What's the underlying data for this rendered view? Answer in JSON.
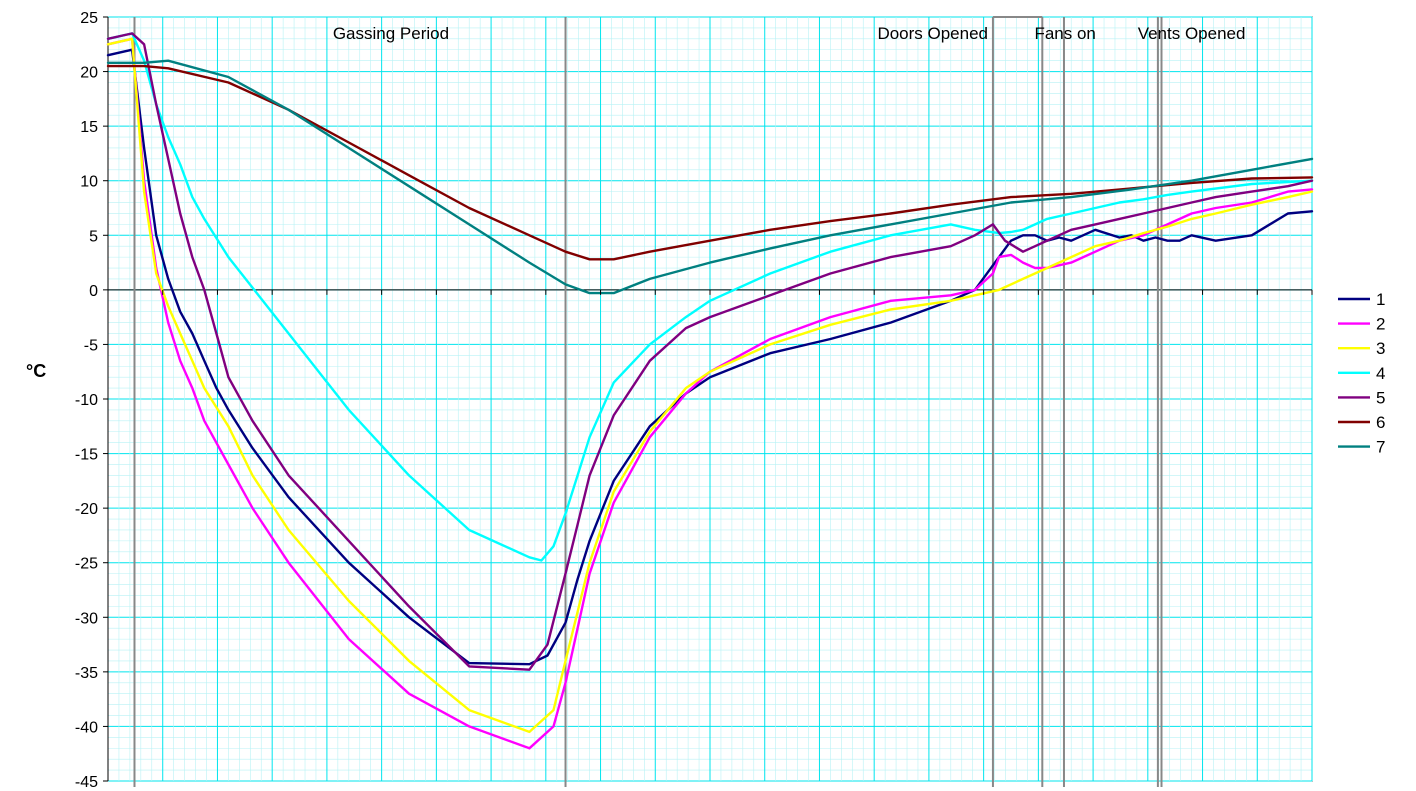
{
  "chart_data": {
    "type": "line",
    "ylabel": "°C",
    "ylim": [
      -45,
      25
    ],
    "y_ticks": [
      "25",
      "20",
      "15",
      "10",
      "5",
      "0",
      "-5",
      "-10",
      "-15",
      "-20",
      "-25",
      "-30",
      "-35",
      "-40",
      "-45"
    ],
    "xlim": [
      0,
      100
    ],
    "grid": true,
    "legend_position": "right",
    "annotations": [
      {
        "text": "Gassing Period",
        "x": 23.5
      },
      {
        "text": "Doors Opened",
        "x": 68.5
      },
      {
        "text": "Fans on",
        "x": 79.5
      },
      {
        "text": "Vents Opened",
        "x": 90.0
      }
    ],
    "markers": [
      2.2,
      38.0,
      73.5,
      77.6,
      79.4,
      87.2,
      87.5
    ],
    "series": [
      {
        "name": "1",
        "color": "#000080",
        "x": [
          0,
          2,
          3,
          4,
          5,
          6,
          7,
          8,
          9,
          10,
          12,
          15,
          20,
          25,
          30,
          35,
          36.5,
          38,
          39,
          40,
          42,
          45,
          48,
          50,
          55,
          60,
          65,
          70,
          72,
          74,
          75,
          76,
          77,
          78,
          79,
          80,
          82,
          84,
          85,
          86,
          87,
          88,
          89,
          90,
          92,
          95,
          98,
          100
        ],
        "y": [
          21.5,
          22,
          13,
          5,
          1,
          -2,
          -4,
          -6.5,
          -9,
          -11,
          -14.5,
          -19,
          -25,
          -30,
          -34.2,
          -34.3,
          -33.5,
          -30.5,
          -26.5,
          -23,
          -17.5,
          -12.5,
          -9.5,
          -8,
          -5.8,
          -4.5,
          -3,
          -1,
          0,
          3,
          4.5,
          5,
          5,
          4.5,
          4.8,
          4.5,
          5.5,
          4.8,
          5,
          4.5,
          4.8,
          4.5,
          4.5,
          5,
          4.5,
          5,
          7,
          7.2
        ]
      },
      {
        "name": "2",
        "color": "#ff00ff",
        "x": [
          0,
          2,
          3,
          4,
          5,
          6,
          7,
          8,
          10,
          12,
          15,
          20,
          25,
          30,
          35,
          37,
          38,
          39,
          40,
          42,
          45,
          48,
          50,
          55,
          60,
          65,
          70,
          72,
          73.5,
          74,
          75,
          76,
          77,
          78,
          80,
          82,
          84,
          86,
          88,
          90,
          92,
          95,
          98,
          100
        ],
        "y": [
          22.5,
          23,
          10,
          2,
          -3,
          -6.5,
          -9,
          -12,
          -16,
          -20,
          -25,
          -32,
          -37,
          -40,
          -42,
          -40,
          -36,
          -31,
          -26,
          -19.5,
          -13.5,
          -9.5,
          -7.5,
          -4.5,
          -2.5,
          -1,
          -0.5,
          0,
          1.5,
          3,
          3.2,
          2.5,
          2,
          2,
          2.5,
          3.5,
          4.5,
          5,
          6,
          7,
          7.5,
          8,
          9,
          9.2
        ]
      },
      {
        "name": "3",
        "color": "#ffff00",
        "x": [
          0,
          2,
          3,
          4,
          5,
          6,
          7,
          8,
          10,
          12,
          15,
          20,
          25,
          30,
          35,
          37,
          38,
          39,
          40,
          42,
          45,
          48,
          50,
          55,
          60,
          65,
          70,
          72,
          74,
          76,
          78,
          80,
          82,
          84,
          86,
          88,
          90,
          92,
          95,
          98,
          100
        ],
        "y": [
          22.5,
          23,
          9,
          1.5,
          -1.5,
          -4,
          -6.5,
          -9,
          -12.5,
          -17,
          -22,
          -28.5,
          -34,
          -38.5,
          -40.5,
          -38.5,
          -34,
          -29.5,
          -25,
          -18.5,
          -13,
          -9,
          -7.5,
          -5,
          -3.2,
          -1.8,
          -1,
          -0.5,
          0,
          1,
          2,
          3,
          4,
          4.5,
          5.2,
          5.8,
          6.5,
          7,
          7.8,
          8.5,
          9
        ]
      },
      {
        "name": "4",
        "color": "#00ffff",
        "x": [
          0,
          2,
          3,
          4,
          5,
          6,
          7,
          8,
          10,
          15,
          20,
          25,
          30,
          35,
          36,
          37,
          38,
          39,
          40,
          42,
          45,
          48,
          50,
          55,
          60,
          65,
          70,
          72,
          74,
          75,
          76,
          77,
          78,
          80,
          82,
          84,
          86,
          88,
          90,
          95,
          100
        ],
        "y": [
          23,
          23.5,
          21,
          17,
          14,
          11.5,
          8.5,
          6.5,
          3,
          -4,
          -11,
          -17,
          -22,
          -24.5,
          -24.8,
          -23.5,
          -20.5,
          -17,
          -13.5,
          -8.5,
          -5,
          -2.5,
          -1,
          1.5,
          3.5,
          5,
          6,
          5.5,
          5.2,
          5.3,
          5.5,
          6,
          6.5,
          7,
          7.5,
          8,
          8.3,
          8.7,
          9,
          9.7,
          10
        ]
      },
      {
        "name": "5",
        "color": "#800080",
        "x": [
          0,
          2,
          3,
          4,
          5,
          6,
          7,
          8,
          9,
          10,
          12,
          15,
          20,
          25,
          30,
          35,
          36.5,
          38,
          39,
          40,
          42,
          45,
          48,
          50,
          55,
          60,
          65,
          70,
          72,
          73.5,
          74.5,
          76,
          77,
          78,
          80,
          82,
          84,
          86,
          88,
          90,
          92,
          95,
          98,
          100
        ],
        "y": [
          23,
          23.5,
          22.5,
          17,
          12,
          7,
          3,
          0,
          -4,
          -8,
          -12,
          -17,
          -23,
          -29,
          -34.5,
          -34.8,
          -32.5,
          -26,
          -21.5,
          -17,
          -11.5,
          -6.5,
          -3.5,
          -2.5,
          -0.5,
          1.5,
          3,
          4,
          5,
          6,
          4.5,
          3.5,
          4,
          4.5,
          5.5,
          6,
          6.5,
          7,
          7.5,
          8,
          8.5,
          9,
          9.5,
          10
        ]
      },
      {
        "name": "6",
        "color": "#800000",
        "x": [
          0,
          2,
          3,
          5,
          10,
          15,
          20,
          25,
          30,
          35,
          38,
          40,
          42,
          45,
          50,
          55,
          60,
          65,
          70,
          75,
          80,
          85,
          90,
          95,
          100
        ],
        "y": [
          20.5,
          20.5,
          20.5,
          20.3,
          19,
          16.5,
          13.5,
          10.5,
          7.5,
          5,
          3.5,
          2.8,
          2.8,
          3.5,
          4.5,
          5.5,
          6.3,
          7,
          7.8,
          8.5,
          8.8,
          9.3,
          9.8,
          10.2,
          10.3
        ]
      },
      {
        "name": "7",
        "color": "#008080",
        "x": [
          0,
          2,
          3,
          5,
          10,
          15,
          20,
          25,
          30,
          35,
          38,
          40,
          42,
          45,
          50,
          55,
          60,
          65,
          70,
          75,
          80,
          85,
          90,
          95,
          100
        ],
        "y": [
          20.8,
          20.8,
          20.8,
          21,
          19.5,
          16.5,
          13,
          9.5,
          6,
          2.5,
          0.5,
          -0.3,
          -0.3,
          1,
          2.5,
          3.8,
          5,
          6,
          7,
          8,
          8.5,
          9.2,
          10,
          11,
          12
        ]
      }
    ]
  }
}
